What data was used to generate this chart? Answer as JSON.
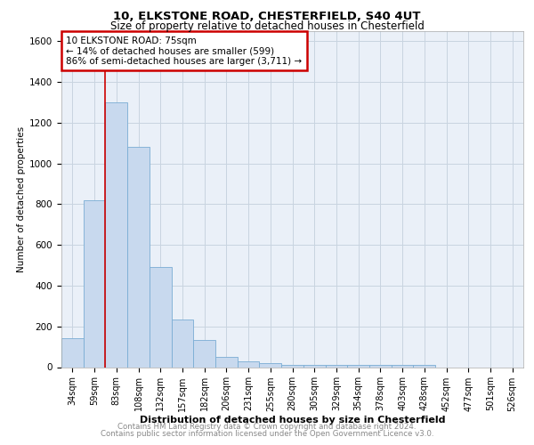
{
  "title1": "10, ELKSTONE ROAD, CHESTERFIELD, S40 4UT",
  "title2": "Size of property relative to detached houses in Chesterfield",
  "xlabel": "Distribution of detached houses by size in Chesterfield",
  "ylabel": "Number of detached properties",
  "categories": [
    "34sqm",
    "59sqm",
    "83sqm",
    "108sqm",
    "132sqm",
    "157sqm",
    "182sqm",
    "206sqm",
    "231sqm",
    "255sqm",
    "280sqm",
    "305sqm",
    "329sqm",
    "354sqm",
    "378sqm",
    "403sqm",
    "428sqm",
    "452sqm",
    "477sqm",
    "501sqm",
    "526sqm"
  ],
  "values": [
    140,
    820,
    1300,
    1080,
    490,
    235,
    135,
    50,
    30,
    20,
    13,
    13,
    13,
    13,
    13,
    13,
    13,
    0,
    0,
    0,
    0
  ],
  "bar_color": "#c8d9ee",
  "bar_edge_color": "#7aadd4",
  "vline_x": 1.5,
  "annotation_text": "10 ELKSTONE ROAD: 75sqm\n← 14% of detached houses are smaller (599)\n86% of semi-detached houses are larger (3,711) →",
  "annotation_box_color": "#ffffff",
  "annotation_box_edge": "#cc0000",
  "vline_color": "#cc0000",
  "ylim": [
    0,
    1650
  ],
  "yticks": [
    0,
    200,
    400,
    600,
    800,
    1000,
    1200,
    1400,
    1600
  ],
  "footer1": "Contains HM Land Registry data © Crown copyright and database right 2024.",
  "footer2": "Contains public sector information licensed under the Open Government Licence v3.0.",
  "grid_color": "#c8d4e0",
  "bg_color": "#eaf0f8"
}
